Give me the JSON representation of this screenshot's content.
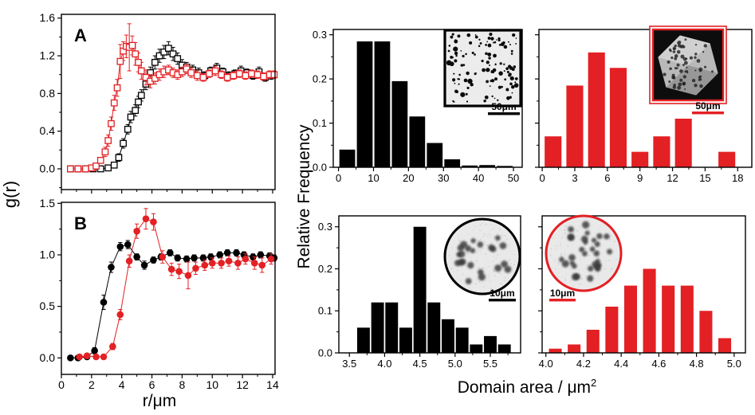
{
  "labels": {
    "left_ylabel": "g(r)",
    "left_xlabel": "r/μm",
    "right_ylabel": "Relative Frequency",
    "right_xlabel": "Domain area / μm",
    "right_xlabel_sup": "2"
  },
  "colors": {
    "black": "#000000",
    "red": "#e32024",
    "inset_bg": "#ececec"
  },
  "chart_data": [
    {
      "id": "panel-A",
      "type": "scatter",
      "panel_label": "A",
      "xlim": [
        0,
        14.16
      ],
      "ylim": [
        -0.22,
        1.64
      ],
      "xticks": [
        0,
        2,
        4,
        6,
        8,
        10,
        12,
        14
      ],
      "xtick_labels": null,
      "yticks": [
        0,
        0.4,
        0.8,
        1.2,
        1.6
      ],
      "ytick_labels": [
        "0.0",
        "0.4",
        "0.8",
        "1.2",
        "1.6"
      ],
      "series": [
        {
          "name": "black open squares",
          "color": "#000000",
          "marker": "square",
          "x": [
            0.6,
            1.1,
            1.6,
            2.1,
            2.6,
            3.1,
            3.5,
            3.8,
            4.1,
            4.4,
            4.6,
            4.9,
            5.1,
            5.3,
            5.6,
            5.9,
            6.2,
            6.5,
            6.8,
            7.1,
            7.4,
            7.7,
            8.0,
            8.3,
            8.7,
            9.1,
            9.5,
            9.9,
            10.3,
            10.7,
            11.1,
            11.5,
            11.9,
            12.3,
            12.7,
            13.1,
            13.5,
            13.9
          ],
          "y": [
            0,
            0,
            0,
            0,
            0,
            0.01,
            0.04,
            0.12,
            0.27,
            0.42,
            0.55,
            0.62,
            0.71,
            0.78,
            0.9,
            1.02,
            1.13,
            1.2,
            1.24,
            1.28,
            1.22,
            1.17,
            1.1,
            1.08,
            1.05,
            1.02,
            0.99,
            1.04,
            1.07,
            1.03,
            0.99,
            1.01,
            1.04,
            1.02,
            0.99,
            1.03,
            0.97,
            0.99
          ],
          "e": [
            0.01,
            0.01,
            0.01,
            0.01,
            0.01,
            0.02,
            0.03,
            0.04,
            0.05,
            0.05,
            0.06,
            0.06,
            0.06,
            0.06,
            0.06,
            0.06,
            0.07,
            0.07,
            0.07,
            0.07,
            0.07,
            0.06,
            0.06,
            0.05,
            0.05,
            0.05,
            0.04,
            0.04,
            0.05,
            0.04,
            0.04,
            0.04,
            0.05,
            0.04,
            0.04,
            0.05,
            0.04,
            0.04
          ]
        },
        {
          "name": "red open squares",
          "color": "#e32024",
          "marker": "square",
          "x": [
            0.6,
            1.1,
            1.6,
            2.0,
            2.3,
            2.6,
            2.9,
            3.1,
            3.3,
            3.5,
            3.7,
            3.9,
            4.1,
            4.3,
            4.5,
            4.7,
            4.9,
            5.1,
            5.3,
            5.6,
            5.9,
            6.2,
            6.5,
            6.8,
            7.1,
            7.4,
            7.7,
            8.0,
            8.3,
            8.6,
            9.0,
            9.4,
            9.8,
            10.2,
            10.6,
            11.0,
            11.4,
            11.8,
            12.2,
            12.6,
            13.0,
            13.4,
            13.8,
            14.1
          ],
          "y": [
            0,
            0,
            0,
            0.01,
            0.03,
            0.09,
            0.18,
            0.3,
            0.48,
            0.7,
            0.86,
            1.14,
            1.25,
            1.3,
            1.29,
            1.31,
            1.22,
            1.13,
            1.04,
            0.97,
            0.93,
            0.96,
            1.0,
            1.03,
            1.05,
            1.02,
            1.0,
            1.03,
            1.06,
            1.02,
            0.99,
            0.97,
            1.01,
            1.04,
            1.0,
            0.97,
            0.99,
            1.01,
            0.99,
            1.01,
            1.0,
            0.98,
            1.0,
            1.0
          ],
          "e": [
            0.01,
            0.01,
            0.01,
            0.01,
            0.02,
            0.03,
            0.05,
            0.06,
            0.07,
            0.08,
            0.09,
            0.18,
            0.1,
            0.12,
            0.25,
            0.1,
            0.12,
            0.1,
            0.09,
            0.08,
            0.07,
            0.06,
            0.06,
            0.06,
            0.05,
            0.05,
            0.05,
            0.05,
            0.05,
            0.05,
            0.05,
            0.04,
            0.04,
            0.05,
            0.04,
            0.04,
            0.04,
            0.04,
            0.04,
            0.04,
            0.04,
            0.04,
            0.04,
            0.04
          ]
        }
      ]
    },
    {
      "id": "panel-B",
      "type": "scatter",
      "panel_label": "B",
      "xlim": [
        0,
        14.16
      ],
      "ylim": [
        -0.16,
        1.51
      ],
      "xticks": [
        0,
        2,
        4,
        6,
        8,
        10,
        12,
        14
      ],
      "xtick_labels": [
        "0",
        "2",
        "4",
        "6",
        "8",
        "10",
        "12",
        "14"
      ],
      "yticks": [
        0,
        0.5,
        1.0,
        1.5
      ],
      "ytick_labels": [
        "0.0",
        "0.5",
        "1.0",
        "1.5"
      ],
      "series": [
        {
          "name": "black filled circles",
          "color": "#000000",
          "marker": "circle",
          "x": [
            0.6,
            1.1,
            1.7,
            2.2,
            2.8,
            3.3,
            3.9,
            4.4,
            5.0,
            5.5,
            6.1,
            6.6,
            7.2,
            7.7,
            8.3,
            8.8,
            9.4,
            9.9,
            10.5,
            11.0,
            11.6,
            12.1,
            12.7,
            13.2,
            13.8,
            14.1
          ],
          "y": [
            0,
            0,
            0.01,
            0.07,
            0.54,
            0.88,
            1.08,
            1.1,
            0.98,
            0.9,
            0.95,
            0.98,
            1.02,
            0.97,
            0.96,
            0.97,
            0.97,
            0.98,
            1.0,
            1.02,
            1.02,
            1.0,
            0.98,
            1.0,
            0.99,
            0.97
          ],
          "e": [
            0.01,
            0.01,
            0.01,
            0.03,
            0.07,
            0.05,
            0.04,
            0.04,
            0.03,
            0.04,
            0.03,
            0.03,
            0.03,
            0.03,
            0.03,
            0.03,
            0.03,
            0.03,
            0.03,
            0.03,
            0.03,
            0.03,
            0.03,
            0.03,
            0.03,
            0.03
          ]
        },
        {
          "name": "red filled circles",
          "color": "#e32024",
          "marker": "circle",
          "x": [
            1.2,
            1.7,
            2.3,
            2.8,
            3.4,
            3.9,
            4.5,
            5.0,
            5.6,
            6.1,
            6.7,
            7.3,
            7.8,
            8.4,
            8.9,
            9.5,
            10.0,
            10.6,
            11.1,
            11.7,
            12.2,
            12.8,
            13.3,
            13.9
          ],
          "y": [
            0.01,
            0.02,
            0.01,
            0.01,
            0.11,
            0.42,
            0.94,
            1.23,
            1.35,
            1.32,
            0.98,
            0.86,
            0.84,
            0.8,
            0.87,
            0.9,
            0.92,
            0.92,
            0.94,
            0.92,
            0.96,
            0.92,
            0.9,
            0.96
          ],
          "e": [
            0.01,
            0.01,
            0.01,
            0.01,
            0.03,
            0.05,
            0.06,
            0.07,
            0.1,
            0.08,
            0.06,
            0.06,
            0.07,
            0.13,
            0.06,
            0.05,
            0.05,
            0.05,
            0.05,
            0.06,
            0.05,
            0.06,
            0.07,
            0.05
          ]
        }
      ]
    },
    {
      "id": "hist-black-large",
      "type": "bar",
      "color": "#000000",
      "bin_centers": [
        2.5,
        7.5,
        12.5,
        17.5,
        22.5,
        27.5,
        32.5,
        37.5,
        42.5,
        47.5
      ],
      "values": [
        0.04,
        0.285,
        0.285,
        0.195,
        0.115,
        0.055,
        0.018,
        0.004,
        0.005,
        0.003
      ],
      "bar_width": 4.5,
      "xlim": [
        -1.5,
        52.5
      ],
      "ylim": [
        0,
        0.312
      ],
      "xticks": [
        0,
        10,
        20,
        30,
        40,
        50
      ],
      "xtick_labels": [
        "0",
        "10",
        "20",
        "30",
        "40",
        "50"
      ],
      "yticks": [
        0,
        0.1,
        0.2,
        0.3
      ],
      "ytick_labels": [
        "0.0",
        "0.1",
        "0.2",
        "0.3"
      ],
      "show_ytick_labels": true,
      "inset": {
        "variant": "square-dots",
        "border_color": "#000000",
        "scalebar_label": "50μm",
        "description": "micrograph, many small dark domains"
      }
    },
    {
      "id": "hist-red-large",
      "type": "bar",
      "color": "#e32024",
      "bin_centers": [
        1,
        3,
        5,
        7,
        9,
        11,
        13,
        15,
        17
      ],
      "values": [
        0.07,
        0.185,
        0.26,
        0.225,
        0.035,
        0.07,
        0.11,
        0,
        0.035
      ],
      "bar_width": 1.55,
      "xlim": [
        -0.3,
        19.3
      ],
      "ylim": [
        0,
        0.312
      ],
      "xticks": [
        0,
        3,
        6,
        9,
        12,
        15,
        18
      ],
      "xtick_labels": [
        "0",
        "3",
        "6",
        "9",
        "12",
        "15",
        "18"
      ],
      "yticks": [
        0,
        0.1,
        0.2,
        0.3
      ],
      "ytick_labels": [
        "0.0",
        "0.1",
        "0.2",
        "0.3"
      ],
      "show_ytick_labels": false,
      "inset": {
        "variant": "square-hexagon",
        "border_color": "#e32024",
        "scalebar_label": "50μm",
        "description": "hexagonal crystal platelet with dark domains"
      }
    },
    {
      "id": "hist-black-small",
      "type": "bar",
      "color": "#000000",
      "bin_centers": [
        3.7,
        3.9,
        4.1,
        4.3,
        4.5,
        4.7,
        4.9,
        5.1,
        5.3,
        5.5,
        5.7
      ],
      "values": [
        0.06,
        0.12,
        0.12,
        0.06,
        0.3,
        0.12,
        0.08,
        0.06,
        0.02,
        0.04,
        0.02
      ],
      "bar_width": 0.18,
      "xlim": [
        3.35,
        5.93
      ],
      "ylim": [
        0,
        0.326
      ],
      "xticks": [
        3.5,
        4.0,
        4.5,
        5.0,
        5.5
      ],
      "xtick_labels": [
        "3.5",
        "4.0",
        "4.5",
        "5.0",
        "5.5"
      ],
      "yticks": [
        0,
        0.1,
        0.2,
        0.3
      ],
      "ytick_labels": [
        "0.0",
        "0.1",
        "0.2",
        "0.3"
      ],
      "show_ytick_labels": true,
      "inset": {
        "variant": "circle-dots",
        "border_color": "#000000",
        "dot_count": 22,
        "scalebar_label": "10μm",
        "description": "round vesicle with dark fuzzy domains"
      }
    },
    {
      "id": "hist-red-small",
      "type": "bar",
      "color": "#e32024",
      "bin_centers": [
        4.05,
        4.15,
        4.25,
        4.35,
        4.45,
        4.55,
        4.65,
        4.75,
        4.85,
        4.95
      ],
      "values": [
        0.01,
        0.02,
        0.055,
        0.11,
        0.16,
        0.2,
        0.16,
        0.16,
        0.1,
        0.035
      ],
      "bar_width": 0.068,
      "xlim": [
        3.98,
        5.06
      ],
      "ylim": [
        0,
        0.326
      ],
      "xticks": [
        4.0,
        4.2,
        4.4,
        4.6,
        4.8,
        5.0
      ],
      "xtick_labels": [
        "4.0",
        "4.2",
        "4.4",
        "4.6",
        "4.8",
        "5.0"
      ],
      "yticks": [
        0,
        0.1,
        0.2,
        0.3
      ],
      "ytick_labels": [
        "0.0",
        "0.1",
        "0.2",
        "0.3"
      ],
      "show_ytick_labels": false,
      "inset": {
        "variant": "circle-dots",
        "border_color": "#e32024",
        "dot_count": 30,
        "scalebar_label": "10μm",
        "description": "round vesicle with dark fuzzy domains"
      }
    }
  ]
}
